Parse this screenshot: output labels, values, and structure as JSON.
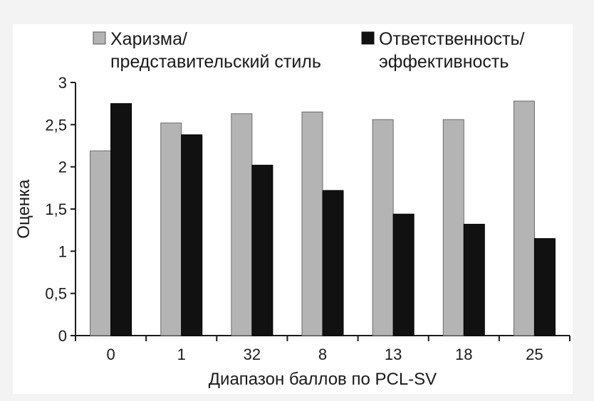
{
  "chart_data": {
    "type": "bar",
    "title": "",
    "xlabel": "Диапазон баллов по PCL-SV",
    "ylabel": "Оценка",
    "categories": [
      "0",
      "1",
      "32",
      "8",
      "13",
      "18",
      "25"
    ],
    "ylim": [
      0,
      3
    ],
    "yticks": [
      "0",
      "0,5",
      "1",
      "1,5",
      "2",
      "2,5",
      "3"
    ],
    "ytick_values": [
      0,
      0.5,
      1,
      1.5,
      2,
      2.5,
      3
    ],
    "grid": false,
    "legend_position": "top",
    "series": [
      {
        "name": "Харизма/ представительский стиль",
        "name_lines": [
          "Харизма/",
          "представительский стиль"
        ],
        "color": "#b4b4b4",
        "values": [
          2.19,
          2.52,
          2.63,
          2.65,
          2.56,
          2.56,
          2.78
        ]
      },
      {
        "name": "Ответственность/ эффективность",
        "name_lines": [
          "Ответственность/",
          "эффективность"
        ],
        "color": "#111111",
        "values": [
          2.75,
          2.38,
          2.02,
          1.72,
          1.44,
          1.32,
          1.15
        ]
      }
    ]
  }
}
